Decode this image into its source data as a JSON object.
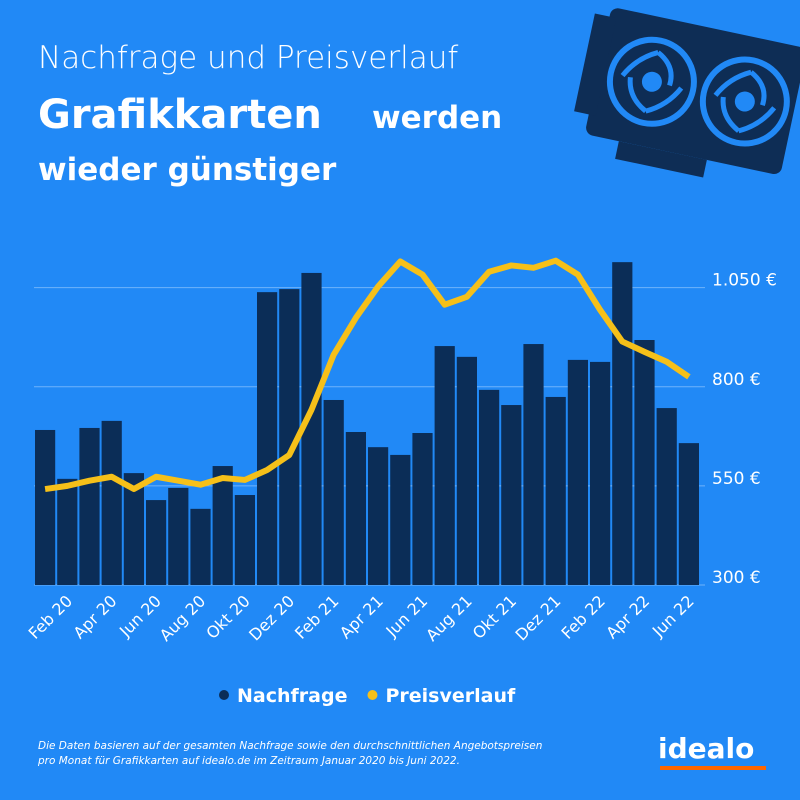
{
  "chart_data": {
    "type": "bar-line",
    "title": "Nachfrage und Preisverlauf",
    "headline": [
      "Grafikkarten",
      "werden",
      "wieder günstiger"
    ],
    "categories": [
      null,
      "Feb 20",
      null,
      "Apr 20",
      null,
      "Jun 20",
      null,
      "Aug 20",
      null,
      "Okt 20",
      null,
      "Dez 20",
      null,
      "Feb 21",
      null,
      "Apr 21",
      null,
      "Jun 21",
      null,
      "Aug 21",
      null,
      "Okt 21",
      null,
      "Dez 21",
      null,
      "Feb 22",
      null,
      "Apr 22",
      null,
      "Jun 22"
    ],
    "series": [
      {
        "name": "Nachfrage",
        "color": "#0b2d57",
        "axis": "y2",
        "kind": "bar",
        "values": [
          46,
          31.5,
          46.6,
          48.7,
          33.2,
          25.2,
          28.8,
          22.6,
          35.3,
          26.7,
          86.9,
          87.8,
          92.6,
          54.9,
          45.4,
          40.9,
          38.6,
          45.1,
          70.9,
          67.7,
          57.9,
          53.4,
          71.5,
          55.8,
          66.8,
          66.2,
          95.8,
          72.7,
          52.5,
          42.1
        ]
      },
      {
        "name": "Preisverlauf",
        "color": "#f6c019",
        "kind": "line",
        "values": [
          542,
          550,
          563,
          573,
          542,
          573,
          563,
          553,
          570,
          565,
          590,
          628,
          742,
          881,
          974,
          1053,
          1116,
          1083,
          1007,
          1027,
          1090,
          1106,
          1100,
          1118,
          1083,
          994,
          914,
          888,
          863,
          825
        ]
      }
    ],
    "ylim": [
      300,
      1150
    ],
    "yticks": [
      {
        "value": 300,
        "label": "300 €"
      },
      {
        "value": 550,
        "label": "550 €"
      },
      {
        "value": 800,
        "label": "800 €"
      },
      {
        "value": 1050,
        "label": "1.050 €"
      }
    ],
    "y2lim": [
      0,
      100
    ],
    "grid": true,
    "footnote": [
      "Die Daten basieren auf der gesamten Nachfrage sowie den durchschnittlichen Angebotspreisen",
      "pro Monat für Grafikkarten auf idealo.de im Zeitraum Januar 2020 bis Juni 2022."
    ],
    "logo": "idealo"
  }
}
